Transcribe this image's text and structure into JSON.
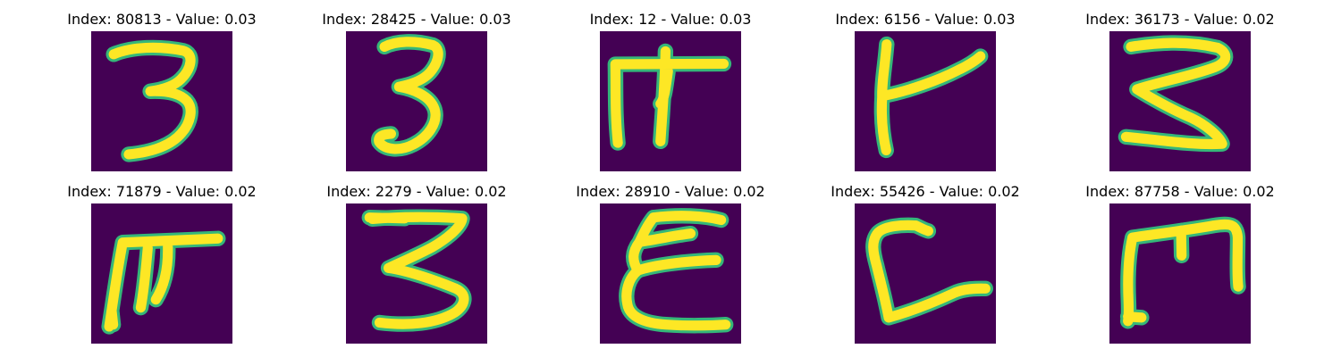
{
  "panels": [
    {
      "index": "80813",
      "value": "0.03",
      "title": "Index: 80813 - Value: 0.03",
      "glyph": "3",
      "image_alt": "handwritten digit resembling 3"
    },
    {
      "index": "28425",
      "value": "0.03",
      "title": "Index: 28425 - Value: 0.03",
      "glyph": "3b",
      "image_alt": "handwritten digit resembling 3"
    },
    {
      "index": "12",
      "value": "0.03",
      "title": "Index: 12 - Value: 0.03",
      "glyph": "m1",
      "image_alt": "handwritten character resembling a bracketed M shape"
    },
    {
      "index": "6156",
      "value": "0.03",
      "title": "Index: 6156 - Value: 0.03",
      "glyph": "k",
      "image_alt": "handwritten character resembling a slanted K shape"
    },
    {
      "index": "36173",
      "value": "0.02",
      "title": "Index: 36173 - Value: 0.02",
      "glyph": "3c",
      "image_alt": "handwritten digit resembling 3"
    },
    {
      "index": "71879",
      "value": "0.02",
      "title": "Index: 71879 - Value: 0.02",
      "glyph": "m2",
      "image_alt": "handwritten character resembling a slanted M shape"
    },
    {
      "index": "2279",
      "value": "0.02",
      "title": "Index: 2279 - Value: 0.02",
      "glyph": "3d",
      "image_alt": "handwritten digit resembling 3"
    },
    {
      "index": "28910",
      "value": "0.02",
      "title": "Index: 28910 - Value: 0.02",
      "glyph": "e",
      "image_alt": "handwritten character resembling E"
    },
    {
      "index": "55426",
      "value": "0.02",
      "title": "Index: 55426 - Value: 0.02",
      "glyph": "c",
      "image_alt": "handwritten character resembling L or C"
    },
    {
      "index": "87758",
      "value": "0.02",
      "title": "Index: 87758 - Value: 0.02",
      "glyph": "m3",
      "image_alt": "handwritten character resembling a boxed M shape"
    }
  ],
  "colors": {
    "background": "#440154",
    "stroke_outer": "#35b779",
    "stroke_inner": "#fde725"
  }
}
